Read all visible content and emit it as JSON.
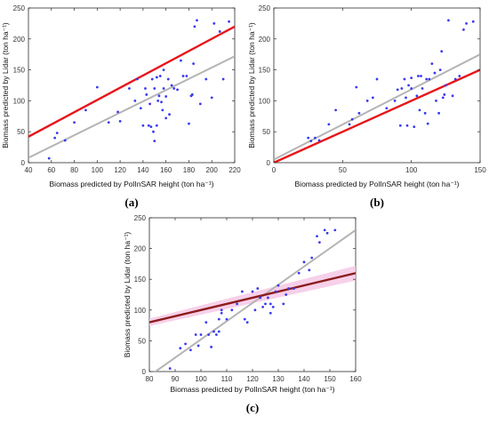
{
  "colors": {
    "point": "#3a3af0",
    "fit_line": "#e8151a",
    "ref_line": "#b4b4b4",
    "band": "#f6c8e6",
    "brown_line": "#8b1c1c"
  },
  "chart_data": [
    {
      "type": "scatter",
      "panel_label": "(a)",
      "xlabel": "Biomass predicted by PolInSAR height (ton ha⁻¹)",
      "ylabel": "Biomass predicted by Lidar (ton ha⁻¹)",
      "xlim": [
        40,
        220
      ],
      "ylim": [
        0,
        250
      ],
      "xticks": [
        40,
        60,
        80,
        100,
        120,
        140,
        160,
        180,
        200,
        220
      ],
      "yticks": [
        0,
        50,
        100,
        150,
        200,
        250
      ],
      "grid": false,
      "points": {
        "x": [
          58,
          63,
          65,
          72,
          80,
          90,
          100,
          110,
          118,
          120,
          128,
          133,
          135,
          138,
          140,
          142,
          143,
          145,
          146,
          147,
          148,
          149,
          150,
          150,
          152,
          152,
          153,
          154,
          155,
          156,
          157,
          158,
          158,
          160,
          160,
          162,
          163,
          165,
          167,
          170,
          173,
          175,
          178,
          180,
          182,
          183,
          184,
          185,
          187,
          190,
          195,
          200,
          202,
          207,
          210,
          215
        ],
        "y": [
          7,
          40,
          48,
          36,
          65,
          85,
          122,
          65,
          82,
          67,
          120,
          100,
          135,
          88,
          60,
          120,
          110,
          60,
          95,
          58,
          135,
          50,
          120,
          35,
          60,
          138,
          100,
          108,
          140,
          98,
          85,
          120,
          150,
          107,
          72,
          135,
          78,
          125,
          120,
          118,
          165,
          140,
          140,
          63,
          108,
          110,
          160,
          220,
          230,
          95,
          135,
          105,
          225,
          212,
          135,
          228
        ]
      },
      "lines": [
        {
          "kind": "fit",
          "x": [
            40,
            220
          ],
          "y": [
            42,
            220
          ]
        },
        {
          "kind": "reference",
          "x": [
            40,
            220
          ],
          "y": [
            8,
            172
          ]
        }
      ]
    },
    {
      "type": "scatter",
      "panel_label": "(b)",
      "xlabel": "Biomass predicted by PolInSAR height (ton ha⁻¹)",
      "ylabel": "Biomass predicted by Lidar (ton ha⁻¹)",
      "xlim": [
        0,
        150
      ],
      "ylim": [
        0,
        250
      ],
      "xticks": [
        0,
        50,
        100,
        150
      ],
      "yticks": [
        0,
        50,
        100,
        150,
        200,
        250
      ],
      "grid": false,
      "points": {
        "x": [
          25,
          27,
          30,
          33,
          40,
          45,
          55,
          57,
          60,
          62,
          68,
          72,
          75,
          82,
          88,
          90,
          92,
          93,
          95,
          96,
          97,
          98,
          100,
          100,
          102,
          104,
          105,
          106,
          107,
          108,
          110,
          111,
          112,
          113,
          115,
          117,
          118,
          120,
          121,
          122,
          123,
          124,
          125,
          127,
          130,
          132,
          135,
          138,
          140,
          145
        ],
        "y": [
          40,
          35,
          40,
          36,
          62,
          85,
          62,
          70,
          122,
          80,
          100,
          105,
          135,
          88,
          100,
          118,
          60,
          120,
          135,
          105,
          60,
          125,
          137,
          120,
          58,
          108,
          140,
          85,
          140,
          120,
          80,
          135,
          63,
          135,
          160,
          145,
          100,
          80,
          150,
          180,
          105,
          110,
          125,
          230,
          108,
          135,
          140,
          215,
          225,
          228
        ]
      },
      "lines": [
        {
          "kind": "fit",
          "x": [
            0,
            150
          ],
          "y": [
            0,
            150
          ]
        },
        {
          "kind": "reference",
          "x": [
            0,
            150
          ],
          "y": [
            5,
            175
          ]
        }
      ]
    },
    {
      "type": "scatter",
      "panel_label": "(c)",
      "xlabel": "Biomass predicted by PolInSAR height (ton ha⁻¹)",
      "ylabel": "Biomass predicted by Lidar (ton ha⁻¹)",
      "xlim": [
        80,
        160
      ],
      "ylim": [
        0,
        250
      ],
      "xticks": [
        80,
        90,
        100,
        110,
        120,
        130,
        140,
        150,
        160
      ],
      "yticks": [
        0,
        50,
        100,
        150,
        200,
        250
      ],
      "grid": false,
      "points": {
        "x": [
          88,
          92,
          94,
          96,
          98,
          99,
          100,
          102,
          103,
          104,
          105,
          106,
          107,
          107,
          108,
          108,
          110,
          112,
          114,
          116,
          117,
          118,
          120,
          121,
          122,
          123,
          124,
          125,
          126,
          127,
          127,
          128,
          129,
          130,
          132,
          133,
          134,
          136,
          138,
          140,
          142,
          143,
          145,
          146,
          148,
          149,
          152
        ],
        "y": [
          5,
          38,
          45,
          35,
          60,
          42,
          60,
          80,
          60,
          40,
          65,
          60,
          85,
          65,
          95,
          100,
          85,
          100,
          110,
          130,
          85,
          80,
          130,
          100,
          135,
          120,
          105,
          110,
          120,
          95,
          110,
          105,
          130,
          140,
          110,
          125,
          135,
          135,
          160,
          178,
          165,
          185,
          220,
          210,
          230,
          225,
          230
        ]
      },
      "lines": [
        {
          "kind": "fit",
          "x": [
            80,
            160
          ],
          "y": [
            80,
            160
          ]
        },
        {
          "kind": "reference",
          "x": [
            80,
            160
          ],
          "y": [
            -7,
            230
          ]
        }
      ],
      "bands": [
        {
          "lower": [
            74,
            148
          ],
          "upper": [
            86,
            172
          ]
        }
      ]
    }
  ]
}
